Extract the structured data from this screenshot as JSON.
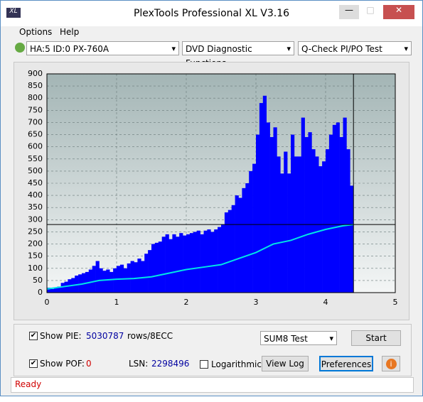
{
  "window": {
    "title": "PlexTools Professional XL V3.16"
  },
  "menu": [
    "Options",
    "Help"
  ],
  "toolbar": {
    "drive": "HA:5 ID:0  PX-760A",
    "function": "DVD Diagnostic Functions",
    "test": "Q-Check PI/PO Test"
  },
  "chart_data": {
    "type": "bar",
    "xlim": [
      0,
      5
    ],
    "xticks": [
      0,
      1,
      2,
      3,
      4,
      5
    ],
    "ylim": [
      0,
      900
    ],
    "yticks": [
      0,
      50,
      100,
      150,
      200,
      250,
      300,
      350,
      400,
      450,
      500,
      550,
      600,
      650,
      700,
      750,
      800,
      850,
      900
    ],
    "grid": true,
    "crosshair": {
      "x": 4.4,
      "y": 280
    },
    "series": [
      {
        "type": "bar",
        "color": "#0000ff",
        "x": [
          0,
          0.05,
          0.1,
          0.15,
          0.2,
          0.25,
          0.3,
          0.35,
          0.4,
          0.45,
          0.5,
          0.55,
          0.6,
          0.65,
          0.7,
          0.75,
          0.8,
          0.85,
          0.9,
          0.95,
          1,
          1.05,
          1.1,
          1.15,
          1.2,
          1.25,
          1.3,
          1.35,
          1.4,
          1.45,
          1.5,
          1.55,
          1.6,
          1.65,
          1.7,
          1.75,
          1.8,
          1.85,
          1.9,
          1.95,
          2,
          2.05,
          2.1,
          2.15,
          2.2,
          2.25,
          2.3,
          2.35,
          2.4,
          2.45,
          2.5,
          2.55,
          2.6,
          2.65,
          2.7,
          2.75,
          2.8,
          2.85,
          2.9,
          2.95,
          3,
          3.05,
          3.1,
          3.15,
          3.2,
          3.25,
          3.3,
          3.35,
          3.4,
          3.45,
          3.5,
          3.55,
          3.6,
          3.65,
          3.7,
          3.75,
          3.8,
          3.85,
          3.9,
          3.95,
          4,
          4.05,
          4.1,
          4.15,
          4.2,
          4.25,
          4.3,
          4.35
        ],
        "values": [
          20,
          15,
          20,
          25,
          40,
          45,
          55,
          60,
          70,
          75,
          80,
          85,
          95,
          110,
          130,
          100,
          90,
          95,
          85,
          100,
          110,
          115,
          100,
          120,
          130,
          125,
          140,
          130,
          160,
          175,
          200,
          205,
          210,
          230,
          240,
          220,
          240,
          230,
          245,
          235,
          240,
          245,
          250,
          255,
          240,
          255,
          260,
          250,
          260,
          270,
          280,
          330,
          340,
          360,
          400,
          390,
          430,
          450,
          500,
          530,
          650,
          780,
          810,
          700,
          640,
          680,
          560,
          490,
          580,
          490,
          650,
          560,
          560,
          720,
          640,
          660,
          590,
          560,
          520,
          540,
          590,
          650,
          690,
          700,
          640,
          720,
          590,
          440
        ]
      },
      {
        "type": "line",
        "color": "#00e5e5",
        "x": [
          0,
          0.25,
          0.5,
          0.75,
          1,
          1.25,
          1.5,
          1.75,
          2,
          2.25,
          2.5,
          2.75,
          3,
          3.25,
          3.5,
          3.75,
          4,
          4.25,
          4.4
        ],
        "values": [
          15,
          25,
          35,
          50,
          55,
          58,
          65,
          80,
          95,
          105,
          115,
          140,
          165,
          200,
          215,
          240,
          260,
          275,
          280
        ]
      }
    ]
  },
  "controls": {
    "show_pie": "Show PIE:",
    "pie_value": "5030787",
    "pie_unit": "rows/8ECC",
    "sum_test": "SUM8 Test",
    "start": "Start",
    "show_pof": "Show POF:",
    "pof_value": "0",
    "lsn_label": "LSN:",
    "lsn_value": "2298496",
    "logarithmic": "Logarithmic",
    "view_log": "View Log",
    "preferences": "Preferences"
  },
  "status": "Ready"
}
